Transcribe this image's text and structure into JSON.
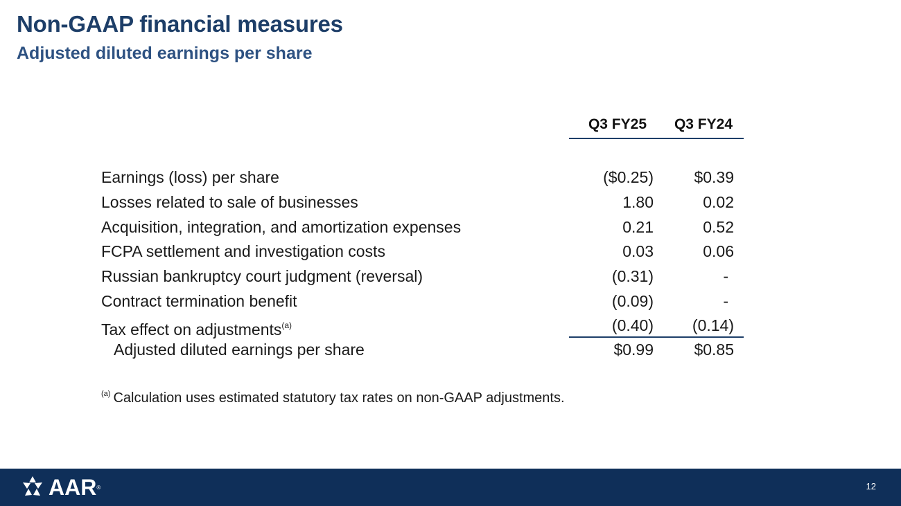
{
  "header": {
    "title": "Non-GAAP financial measures",
    "subtitle": "Adjusted diluted earnings per share"
  },
  "table": {
    "columns": [
      "Q3 FY25",
      "Q3 FY24"
    ],
    "rows": [
      {
        "label": "Earnings (loss) per share",
        "q3fy25": "($0.25)",
        "q3fy24": "$0.39"
      },
      {
        "label": "Losses related to sale of businesses",
        "q3fy25": "1.80",
        "q3fy24": "0.02"
      },
      {
        "label": "Acquisition, integration, and amortization expenses",
        "q3fy25": "0.21",
        "q3fy24": "0.52"
      },
      {
        "label": "FCPA settlement and investigation costs",
        "q3fy25": "0.03",
        "q3fy24": "0.06"
      },
      {
        "label": "Russian bankruptcy court judgment (reversal)",
        "q3fy25": "(0.31)",
        "q3fy24": "-"
      },
      {
        "label": "Contract termination benefit",
        "q3fy25": "(0.09)",
        "q3fy24": "-"
      },
      {
        "label": "Tax effect on adjustments",
        "label_note": "(a)",
        "q3fy25": "(0.40)",
        "q3fy24": "(0.14)"
      }
    ],
    "total": {
      "label": "Adjusted diluted earnings per share",
      "q3fy25": "$0.99",
      "q3fy24": "$0.85"
    }
  },
  "footnote": {
    "marker": "(a)",
    "text": "Calculation uses estimated statutory tax rates on non-GAAP adjustments."
  },
  "footer": {
    "logo_text": "AAR",
    "logo_icon": "aar-star-icon",
    "trademark": "®",
    "page_number": "12",
    "background": "#0f2f59"
  },
  "colors": {
    "title": "#1d3e68",
    "subtitle": "#2e5282",
    "rule": "#1d3e68"
  }
}
